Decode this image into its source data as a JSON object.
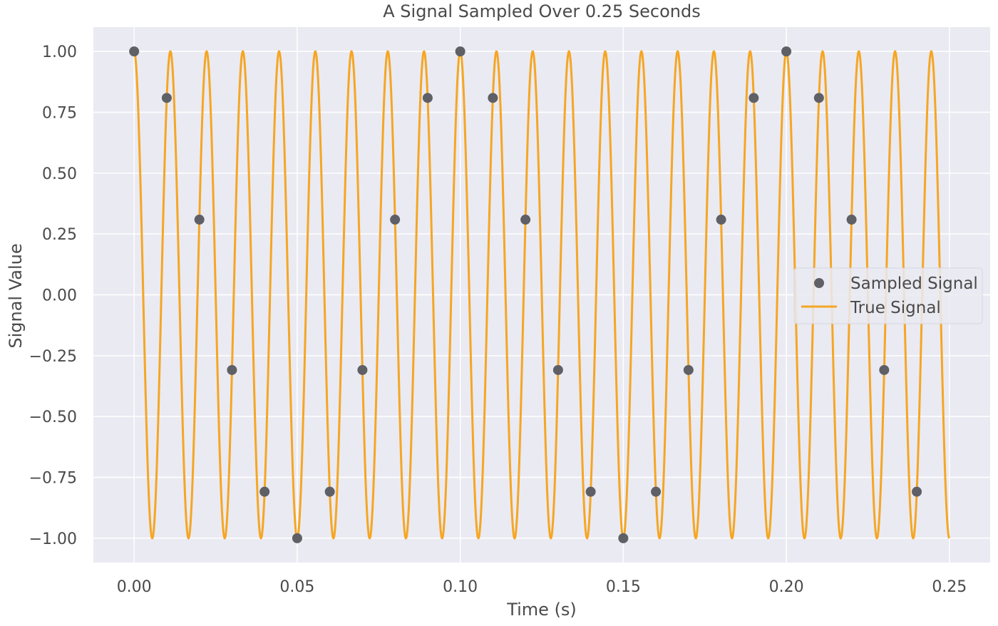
{
  "chart_data": {
    "type": "line",
    "title": "A Signal Sampled Over 0.25 Seconds",
    "xlabel": "Time (s)",
    "ylabel": "Signal Value",
    "xlim": [
      -0.0125,
      0.2625
    ],
    "ylim": [
      -1.1,
      1.1
    ],
    "xticks": [
      0.0,
      0.05,
      0.1,
      0.15,
      0.2,
      0.25
    ],
    "xtick_labels": [
      "0.00",
      "0.05",
      "0.10",
      "0.15",
      "0.20",
      "0.25"
    ],
    "yticks": [
      1.0,
      0.75,
      0.5,
      0.25,
      0.0,
      -0.25,
      -0.5,
      -0.75,
      -1.0
    ],
    "ytick_labels": [
      "1.00",
      "0.75",
      "0.50",
      "0.25",
      "0.00",
      "−0.25",
      "−0.50",
      "−0.75",
      "−1.00"
    ],
    "grid": true,
    "background": "#eaeaf2",
    "legend_position": "center-right",
    "true_signal": {
      "name": "True Signal",
      "color": "#f5a623",
      "function": "cos(2*pi*f*t)",
      "frequency_hz": 90,
      "t_range": [
        0.0,
        0.25
      ]
    },
    "sampled_signal": {
      "name": "Sampled Signal",
      "color": "#5f5f66",
      "x": [
        0.0,
        0.01,
        0.02,
        0.03,
        0.04,
        0.05,
        0.06,
        0.07,
        0.08,
        0.09,
        0.1,
        0.11,
        0.12,
        0.13,
        0.14,
        0.15,
        0.16,
        0.17,
        0.18,
        0.19,
        0.2,
        0.21,
        0.22,
        0.23,
        0.24
      ],
      "y": [
        1.0,
        0.809,
        0.309,
        -0.309,
        -0.809,
        -1.0,
        -0.809,
        -0.309,
        0.309,
        0.809,
        1.0,
        0.809,
        0.309,
        -0.309,
        -0.809,
        -1.0,
        -0.809,
        -0.309,
        0.309,
        0.809,
        1.0,
        0.809,
        0.309,
        -0.309,
        -0.809
      ]
    }
  }
}
